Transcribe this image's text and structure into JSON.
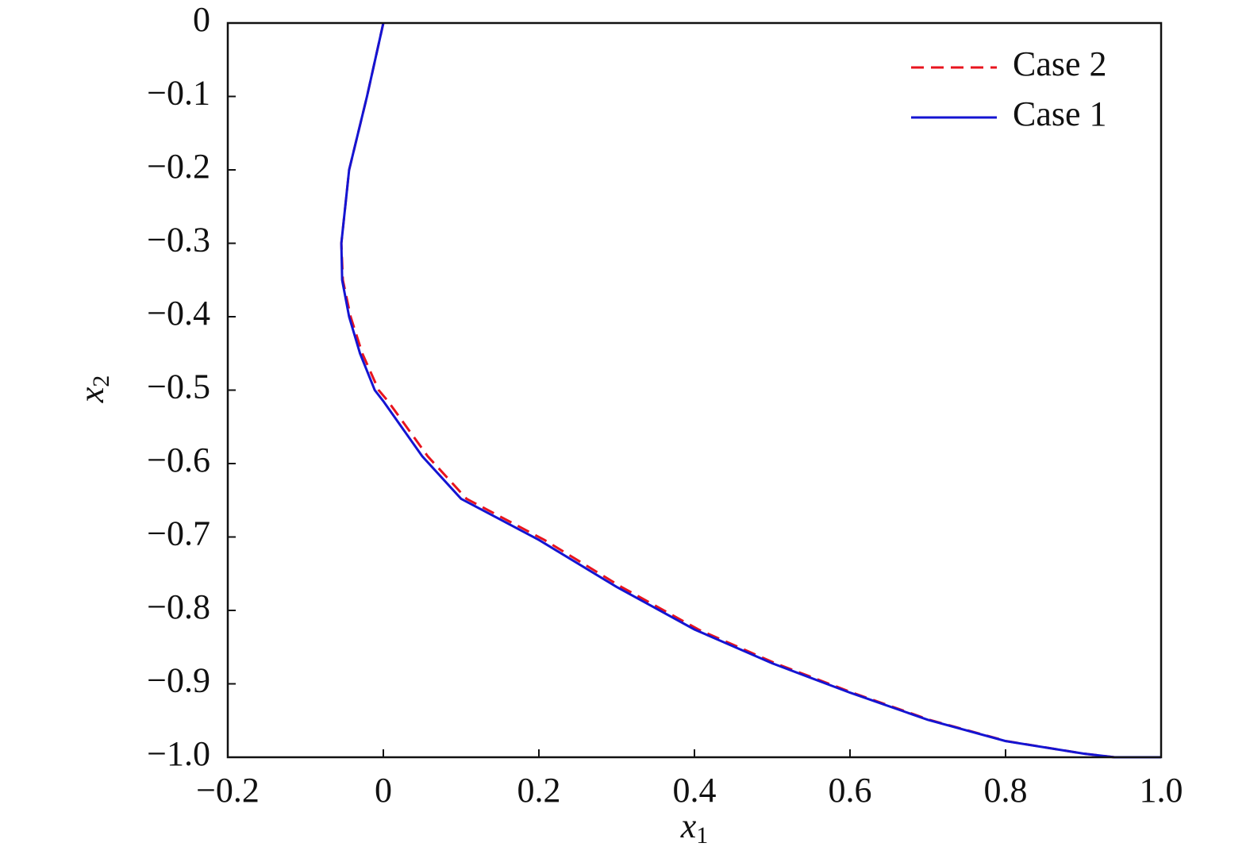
{
  "chart_data": {
    "type": "line",
    "xlabel": "x1",
    "ylabel": "x2",
    "xlim": [
      -0.2,
      1.0
    ],
    "ylim": [
      -1.0,
      0
    ],
    "xticks": [
      {
        "value": -0.2,
        "label": "−0.2"
      },
      0,
      0.2,
      0.4,
      0.6,
      0.8,
      {
        "value": 1.0,
        "label": "1.0"
      }
    ],
    "yticks": [
      0,
      {
        "value": -0.1,
        "label": "−0.1"
      },
      {
        "value": -0.2,
        "label": "−0.2"
      },
      {
        "value": -0.3,
        "label": "−0.3"
      },
      {
        "value": -0.4,
        "label": "−0.4"
      },
      {
        "value": -0.5,
        "label": "−0.5"
      },
      {
        "value": -0.6,
        "label": "−0.6"
      },
      {
        "value": -0.7,
        "label": "−0.7"
      },
      {
        "value": -0.8,
        "label": "−0.8"
      },
      {
        "value": -0.9,
        "label": "−0.9"
      },
      {
        "value": -1.0,
        "label": "−1.0"
      }
    ],
    "legend": "upper right",
    "series": [
      {
        "name": "Case 2",
        "color": "#e8141e",
        "dash": true,
        "x": [
          0,
          -0.021,
          -0.044,
          -0.054,
          -0.052,
          -0.042,
          -0.027,
          -0.006,
          0.006,
          0.057,
          0.107,
          0.207,
          0.306,
          0.405,
          0.504,
          0.603,
          0.702,
          0.801,
          0.9,
          0.94,
          1.0
        ],
        "values": [
          0,
          -0.1,
          -0.2,
          -0.3,
          -0.35,
          -0.4,
          -0.45,
          -0.5,
          -0.515,
          -0.59,
          -0.648,
          -0.704,
          -0.768,
          -0.826,
          -0.872,
          -0.912,
          -0.949,
          -0.978,
          -0.995,
          -1.0,
          -1.0
        ]
      },
      {
        "name": "Case 1",
        "color": "#1414d2",
        "dash": false,
        "x": [
          0,
          -0.021,
          -0.044,
          -0.054,
          -0.053,
          -0.044,
          -0.03,
          -0.011,
          0,
          0.05,
          0.1,
          0.2,
          0.3,
          0.4,
          0.5,
          0.6,
          0.7,
          0.8,
          0.9,
          0.94,
          1.0
        ],
        "values": [
          0,
          -0.1,
          -0.2,
          -0.3,
          -0.35,
          -0.4,
          -0.45,
          -0.5,
          -0.515,
          -0.59,
          -0.648,
          -0.704,
          -0.768,
          -0.826,
          -0.872,
          -0.912,
          -0.949,
          -0.978,
          -0.995,
          -1.0,
          -1.0
        ]
      }
    ]
  }
}
